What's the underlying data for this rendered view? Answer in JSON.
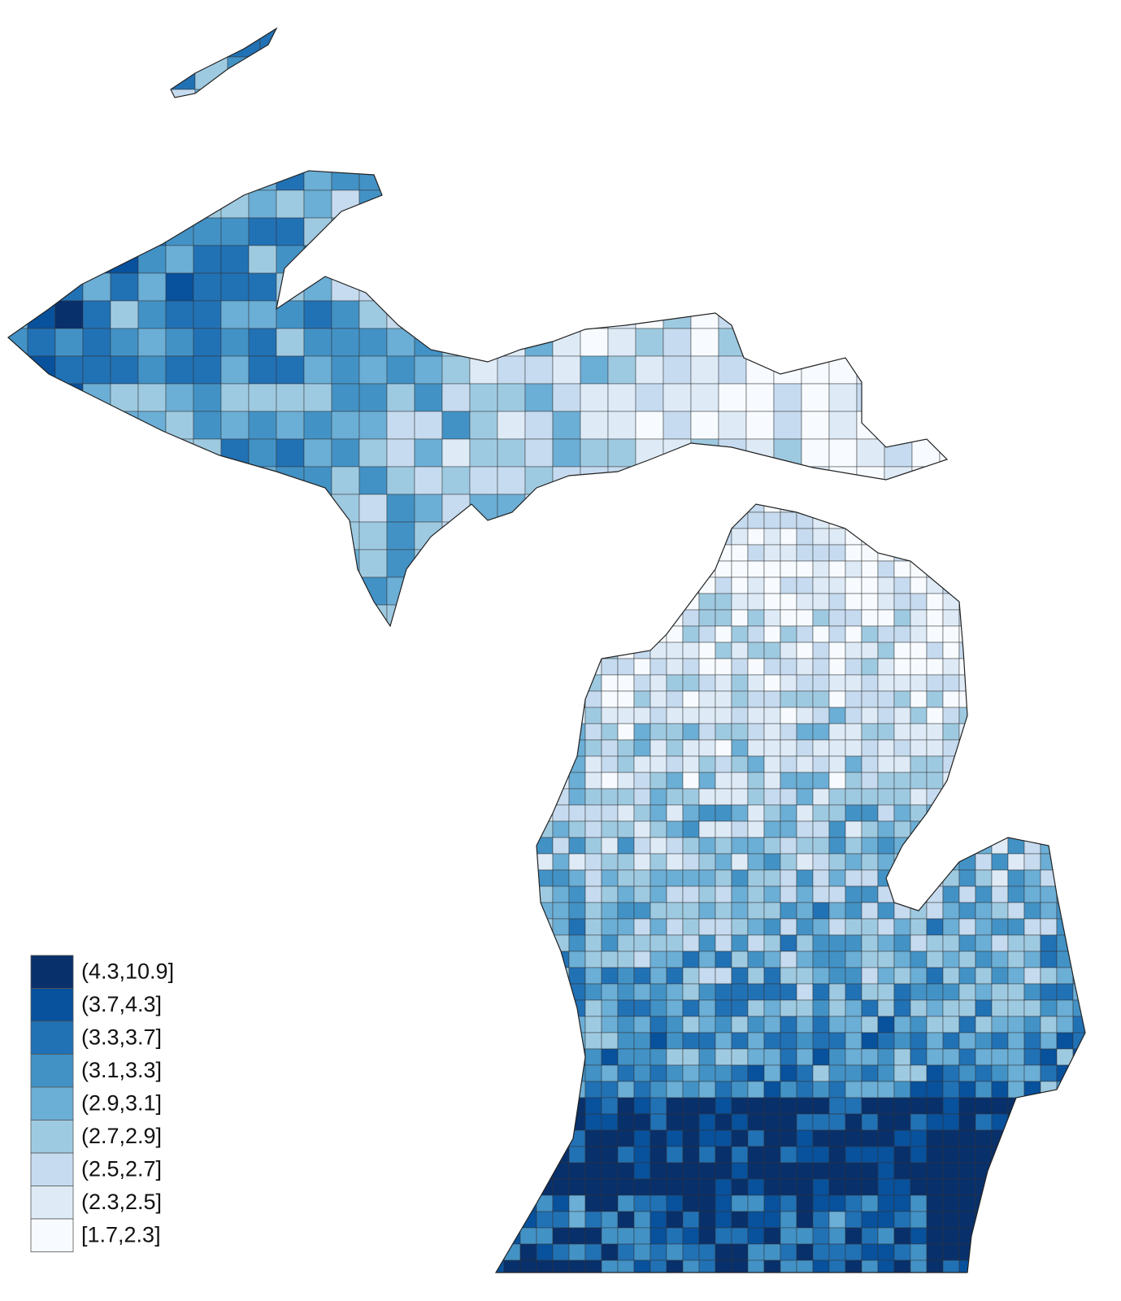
{
  "legend": {
    "items": [
      {
        "label": "(4.3,10.9]",
        "color": "#08306b"
      },
      {
        "label": "(3.7,4.3]",
        "color": "#08519c"
      },
      {
        "label": "(3.3,3.7]",
        "color": "#2171b5"
      },
      {
        "label": "(3.1,3.3]",
        "color": "#4292c6"
      },
      {
        "label": "(2.9,3.1]",
        "color": "#6baed6"
      },
      {
        "label": "(2.7,2.9]",
        "color": "#9ecae1"
      },
      {
        "label": "(2.5,2.7]",
        "color": "#c6dbef"
      },
      {
        "label": "(2.3,2.5]",
        "color": "#deebf7"
      },
      {
        "label": "[1.7,2.3]",
        "color": "#f7fbff"
      }
    ]
  }
}
